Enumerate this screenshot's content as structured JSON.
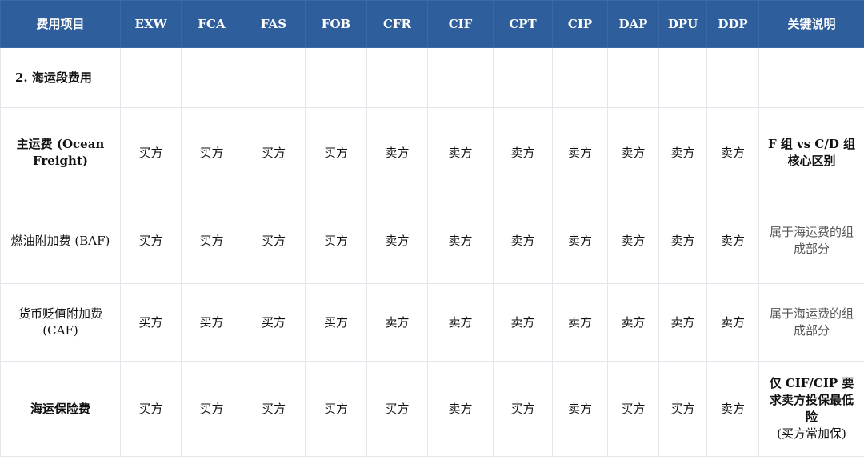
{
  "headers": [
    "费用项目",
    "EXW",
    "FCA",
    "FAS",
    "FOB",
    "CFR",
    "CIF",
    "CPT",
    "CIP",
    "DAP",
    "DPU",
    "DDP",
    "关键说明"
  ],
  "section": "2. 海运段费用",
  "rows": [
    {
      "item": "主运费 (Ocean Freight)",
      "item_bold": true,
      "values": [
        "买方",
        "买方",
        "买方",
        "买方",
        "卖方",
        "卖方",
        "卖方",
        "卖方",
        "卖方",
        "卖方",
        "卖方"
      ],
      "note": "F 组 vs C/D 组核心区别",
      "note_bold": true
    },
    {
      "item": "燃油附加费 (BAF)",
      "item_bold": false,
      "values": [
        "买方",
        "买方",
        "买方",
        "买方",
        "卖方",
        "卖方",
        "卖方",
        "卖方",
        "卖方",
        "卖方",
        "卖方"
      ],
      "note": "属于海运费的组成部分",
      "note_bold": false
    },
    {
      "item": "货币贬值附加费 (CAF)",
      "item_bold": false,
      "values": [
        "买方",
        "买方",
        "买方",
        "买方",
        "卖方",
        "卖方",
        "卖方",
        "卖方",
        "卖方",
        "卖方",
        "卖方"
      ],
      "note": "属于海运费的组成部分",
      "note_bold": false
    },
    {
      "item": "海运保险费",
      "item_bold": true,
      "values": [
        "买方",
        "买方",
        "买方",
        "买方",
        "买方",
        "卖方",
        "买方",
        "卖方",
        "买方",
        "买方",
        "卖方"
      ],
      "note": "仅 CIF/CIP 要求卖方投保最低险",
      "note_extra": "(买方常加保)",
      "note_bold": true
    }
  ]
}
